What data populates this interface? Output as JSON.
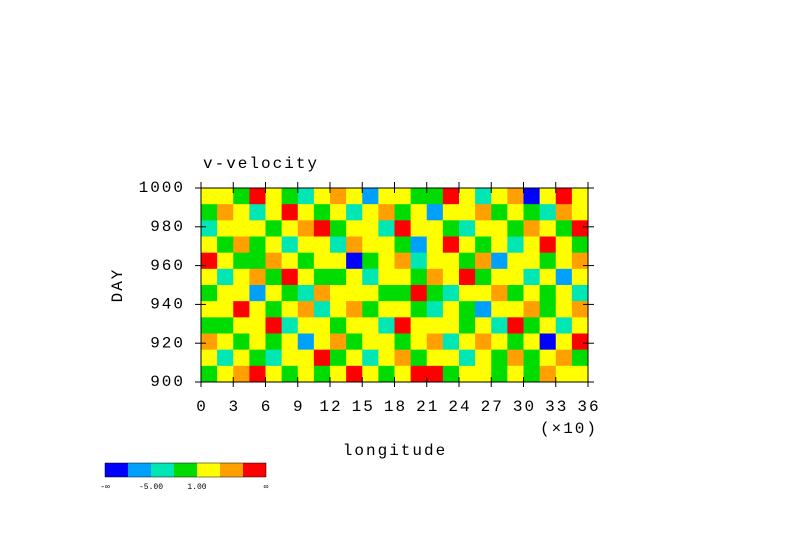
{
  "chart_data": {
    "type": "heatmap",
    "title": "v-velocity",
    "xlabel": "longitude",
    "ylabel": "DAY",
    "x_multiplier": "(×10)",
    "xlim": [
      0,
      36
    ],
    "xticks": [
      0,
      3,
      6,
      9,
      12,
      15,
      18,
      21,
      24,
      27,
      30,
      33,
      36
    ],
    "ylim": [
      900,
      1000
    ],
    "yticks": [
      900,
      920,
      940,
      960,
      980,
      1000
    ],
    "colorbar": {
      "colors": [
        "#0000ff",
        "#00a0ff",
        "#00e6b4",
        "#00dc00",
        "#ffff00",
        "#ffa000",
        "#ff0000"
      ],
      "ticks": [
        {
          "value": null,
          "label": "-∞"
        },
        {
          "value": -5,
          "label": "-5.00"
        },
        {
          "value": 1,
          "label": "1.00"
        },
        {
          "value": null,
          "label": "∞"
        }
      ]
    },
    "z": [
      [
        2,
        3,
        -1,
        8,
        2,
        0,
        -3,
        2,
        5,
        1,
        -6,
        2,
        3,
        -2,
        0,
        9,
        2,
        -3,
        1,
        4,
        -9,
        2,
        8,
        1
      ],
      [
        0,
        5,
        2,
        -3,
        1,
        9,
        2,
        -1,
        3,
        -4,
        2,
        6,
        0,
        2,
        -7,
        1,
        3,
        5,
        -2,
        2,
        0,
        -3,
        4,
        2
      ],
      [
        -4,
        1,
        3,
        2,
        -2,
        1,
        5,
        8,
        -1,
        2,
        3,
        -3,
        9,
        1,
        2,
        -1,
        -5,
        2,
        3,
        0,
        6,
        2,
        -2,
        9
      ],
      [
        2,
        -1,
        6,
        0,
        3,
        -5,
        2,
        1,
        -3,
        5,
        1,
        2,
        -2,
        -6,
        3,
        8,
        1,
        -1,
        2,
        -4,
        2,
        9,
        1,
        -2
      ],
      [
        9,
        2,
        0,
        -2,
        5,
        2,
        -1,
        3,
        2,
        -9,
        0,
        2,
        5,
        -3,
        1,
        2,
        -2,
        4,
        -6,
        2,
        1,
        -1,
        3,
        6
      ],
      [
        1,
        -3,
        2,
        4,
        -1,
        8,
        3,
        -2,
        0,
        2,
        -4,
        1,
        3,
        -1,
        5,
        2,
        9,
        -2,
        1,
        3,
        -3,
        2,
        -7,
        1
      ],
      [
        -2,
        3,
        1,
        -6,
        2,
        0,
        -3,
        5,
        2,
        1,
        3,
        -1,
        -2,
        9,
        0,
        -4,
        2,
        1,
        6,
        -2,
        2,
        0,
        3,
        -3
      ],
      [
        3,
        1,
        8,
        2,
        -1,
        2,
        4,
        -4,
        1,
        6,
        -2,
        2,
        1,
        0,
        -3,
        2,
        -1,
        -8,
        2,
        1,
        5,
        -2,
        1,
        4
      ],
      [
        0,
        -2,
        3,
        1,
        9,
        -3,
        2,
        1,
        -2,
        3,
        1,
        -5,
        8,
        2,
        1,
        3,
        0,
        2,
        -3,
        9,
        -1,
        3,
        -4,
        2
      ],
      [
        6,
        2,
        -1,
        3,
        0,
        2,
        -7,
        2,
        4,
        -1,
        2,
        3,
        -2,
        1,
        5,
        -3,
        2,
        6,
        1,
        -2,
        3,
        -9,
        2,
        8
      ],
      [
        2,
        -4,
        2,
        0,
        -3,
        1,
        3,
        9,
        -1,
        2,
        -5,
        1,
        4,
        -2,
        2,
        1,
        -3,
        2,
        0,
        4,
        -1,
        2,
        6,
        -2
      ],
      [
        -1,
        2,
        5,
        9,
        2,
        -2,
        1,
        0,
        2,
        8,
        3,
        -1,
        2,
        9,
        10,
        -2,
        1,
        3,
        -1,
        2,
        -2,
        5,
        1,
        3
      ]
    ]
  }
}
